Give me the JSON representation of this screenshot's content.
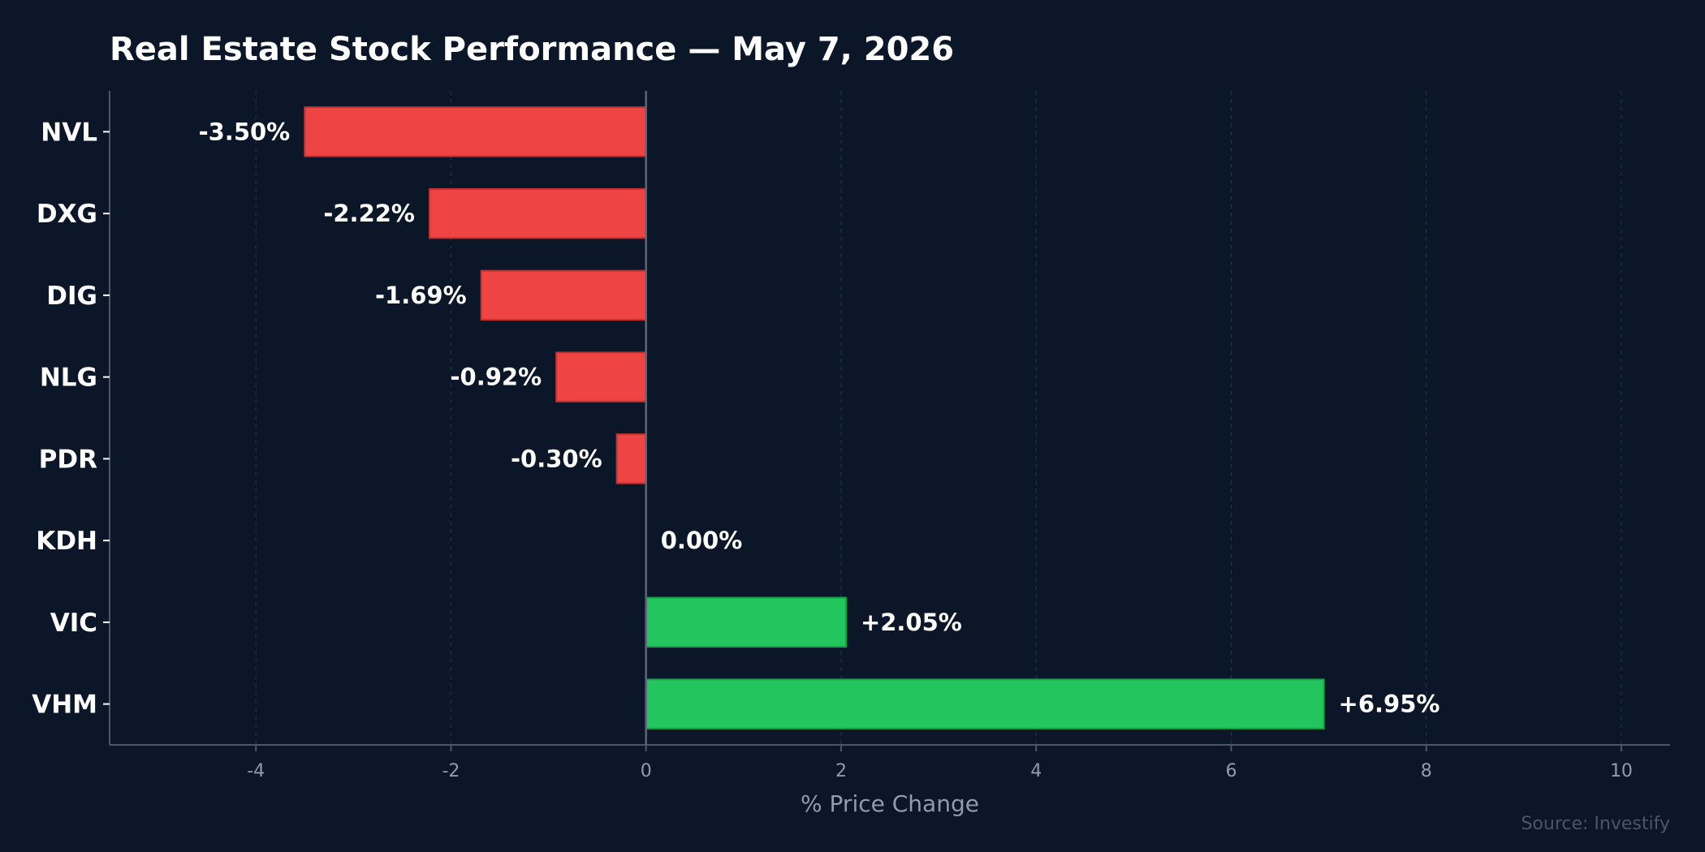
{
  "chart_data": {
    "type": "bar",
    "orientation": "horizontal",
    "title": "Real Estate Stock Performance — May 7, 2026",
    "xlabel": "% Price Change",
    "ylabel": "",
    "categories": [
      "NVL",
      "DXG",
      "DIG",
      "NLG",
      "PDR",
      "KDH",
      "VIC",
      "VHM"
    ],
    "values": [
      -3.5,
      -2.22,
      -1.69,
      -0.92,
      -0.3,
      0.0,
      2.05,
      6.95
    ],
    "value_labels": [
      "-3.50%",
      "-2.22%",
      "-1.69%",
      "-0.92%",
      "-0.30%",
      "0.00%",
      "+2.05%",
      "+6.95%"
    ],
    "xlim": [
      -5.5,
      10.5
    ],
    "xticks": [
      -4,
      -2,
      0,
      2,
      4,
      6,
      8,
      10
    ],
    "grid": "vertical-dashed",
    "source": "Source: Investify"
  },
  "colors": {
    "background": "#0b1628",
    "negative": "#ef4444",
    "positive": "#22c55e",
    "text": "#ffffff",
    "muted": "#8f9cb0",
    "axis": "#4b5668",
    "grid": "#1d3348",
    "source": "#4b5668"
  }
}
